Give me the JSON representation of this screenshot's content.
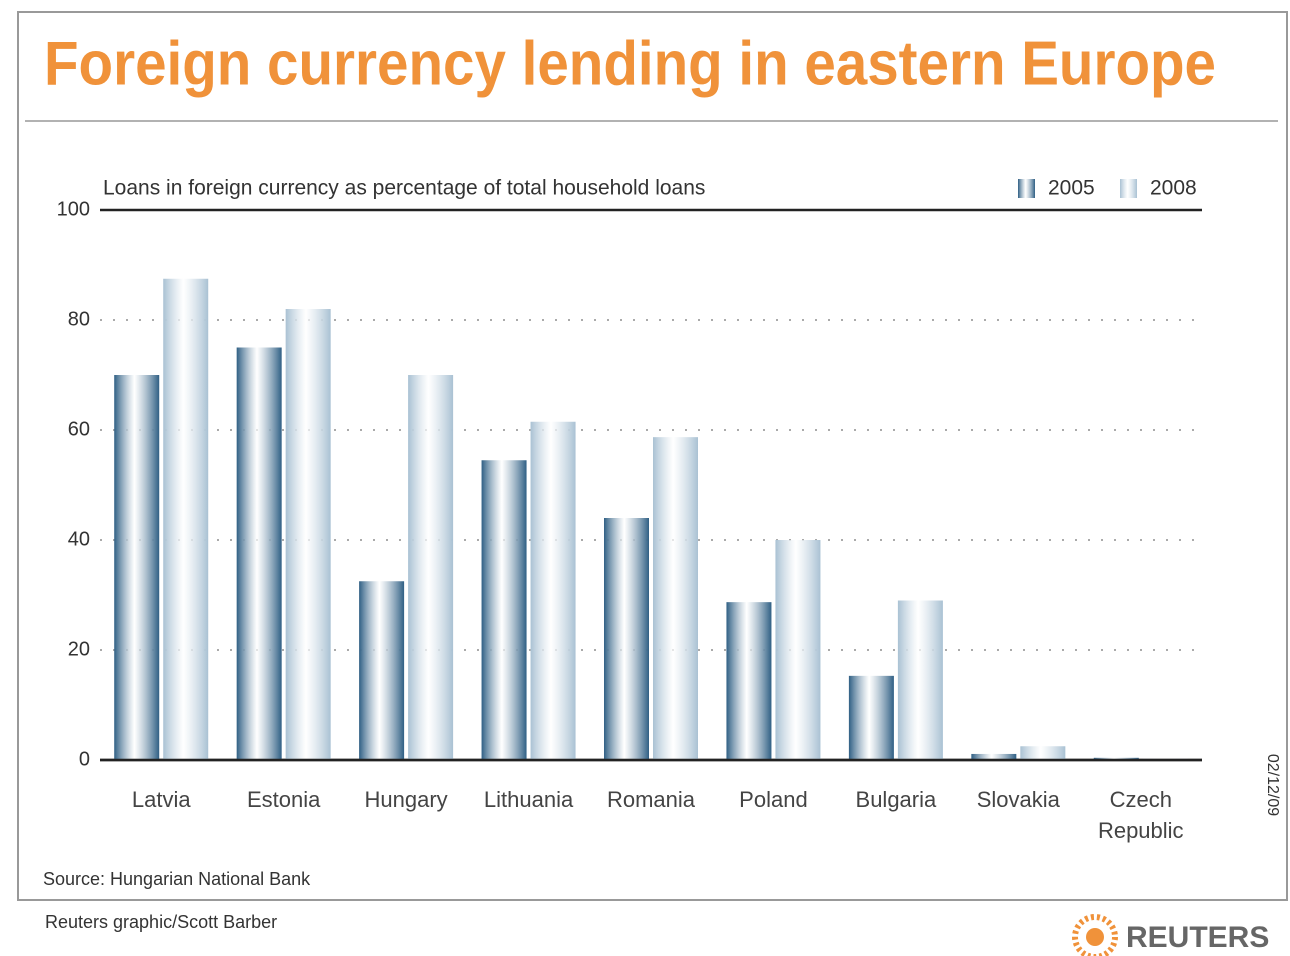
{
  "chart_data": {
    "type": "bar",
    "title": "Foreign currency lending in eastern Europe",
    "subtitle": "Loans in foreign currency as percentage of total household loans",
    "categories": [
      "Latvia",
      "Estonia",
      "Hungary",
      "Lithuania",
      "Romania",
      "Poland",
      "Bulgaria",
      "Slovakia",
      "Czech Republic"
    ],
    "series": [
      {
        "name": "2005",
        "color": "#2f5f84",
        "values": [
          70,
          75,
          32.5,
          54.5,
          44,
          28.7,
          15.3,
          1.1,
          0.4
        ]
      },
      {
        "name": "2008",
        "color": "#a9c1d3",
        "values": [
          87.5,
          82,
          70,
          61.5,
          58.7,
          40,
          29,
          2.5,
          0.2
        ]
      }
    ],
    "ylim": [
      0,
      100
    ],
    "yticks": [
      0,
      20,
      40,
      60,
      80,
      100
    ],
    "grid": true,
    "legend": "top-right",
    "source": "Source: Hungarian National Bank",
    "credit": "Reuters graphic/Scott Barber",
    "date": "02/12/09",
    "brand": "REUTERS"
  }
}
